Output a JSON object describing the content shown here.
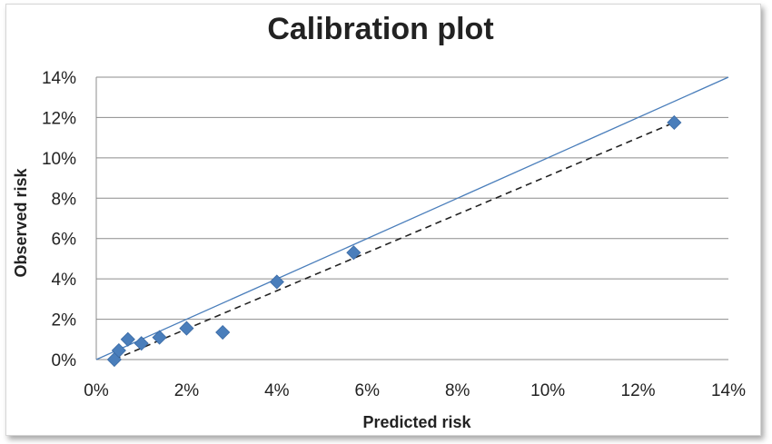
{
  "chart_data": {
    "type": "scatter",
    "title": "Calibration plot",
    "xlabel": "Predicted risk",
    "ylabel": "Observed risk",
    "xlim": [
      0,
      14
    ],
    "ylim": [
      0,
      14
    ],
    "x_ticks": [
      "0%",
      "2%",
      "4%",
      "6%",
      "8%",
      "10%",
      "12%",
      "14%"
    ],
    "y_ticks": [
      "0%",
      "2%",
      "4%",
      "6%",
      "8%",
      "10%",
      "12%",
      "14%"
    ],
    "grid": "horizontal",
    "points": [
      {
        "x": 0.4,
        "y": 0.0
      },
      {
        "x": 0.5,
        "y": 0.45
      },
      {
        "x": 0.7,
        "y": 1.0
      },
      {
        "x": 1.0,
        "y": 0.8
      },
      {
        "x": 1.4,
        "y": 1.1
      },
      {
        "x": 2.0,
        "y": 1.55
      },
      {
        "x": 2.8,
        "y": 1.35
      },
      {
        "x": 4.0,
        "y": 3.85
      },
      {
        "x": 5.7,
        "y": 5.3
      },
      {
        "x": 12.8,
        "y": 11.75
      }
    ],
    "reference_line": {
      "x": [
        0,
        14
      ],
      "y": [
        0,
        14
      ],
      "style": "solid"
    },
    "fit_line": {
      "x": [
        0.4,
        12.8
      ],
      "y": [
        0.0,
        11.75
      ],
      "style": "dashed"
    },
    "colors": {
      "points": "#4a7ebb",
      "reference": "#4a7ebb",
      "fit": "#222222",
      "grid": "#8c8c8c"
    }
  }
}
